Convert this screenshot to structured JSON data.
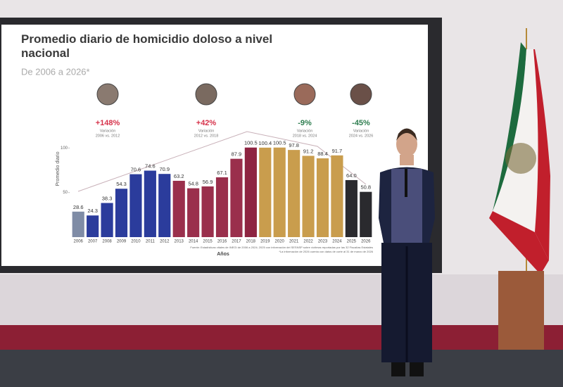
{
  "chart_data": {
    "type": "bar",
    "title": "Promedio diario de homicidio doloso a nivel nacional",
    "subtitle": "De 2006 a 2026*",
    "y_label": "Promedio diario",
    "x_label": "Años",
    "categories": [
      "2006",
      "2007",
      "2008",
      "2009",
      "2010",
      "2011",
      "2012",
      "2013",
      "2014",
      "2015",
      "2016",
      "2017",
      "2018",
      "2019",
      "2020",
      "2021",
      "2022",
      "2023",
      "2024",
      "2025",
      "2026"
    ],
    "values": [
      28.6,
      24.3,
      38.3,
      54.3,
      70.6,
      74.6,
      70.9,
      63.2,
      54.8,
      56.9,
      67.1,
      87.9,
      100.5,
      100.4,
      100.5,
      97.8,
      91.2,
      88.4,
      91.7,
      64.0,
      50.8
    ],
    "value_labels": [
      "28.6",
      "24.3",
      "38.3",
      "54.3",
      "70.6",
      "74.6",
      "70.9",
      "63.2",
      "54.8",
      "56.9",
      "67.1",
      "87.9",
      "100.5",
      "100.4",
      "100.5",
      "97.8",
      "91.2",
      "88.4",
      "91.7",
      "64.0",
      "50.8"
    ],
    "colors": [
      "#7f8ca6",
      "#2b3c9c",
      "#2b3c9c",
      "#2b3c9c",
      "#2b3c9c",
      "#2b3c9c",
      "#2b3c9c",
      "#9a2f4c",
      "#9a2f4c",
      "#9a2f4c",
      "#9a2f4c",
      "#9a2f4c",
      "#8e2441",
      "#c99d4d",
      "#c99d4d",
      "#c99d4d",
      "#c99d4d",
      "#c99d4d",
      "#c99d4d",
      "#2a2a2e",
      "#2a2a2e"
    ],
    "ylim": [
      0,
      105
    ],
    "yticks": [
      50,
      100
    ],
    "annotations": [
      {
        "change": "+148%",
        "label": "Variación",
        "period": "2006 vs. 2012",
        "color": "#d6324a"
      },
      {
        "change": "+42%",
        "label": "Variación",
        "period": "2012 vs. 2018",
        "color": "#d6324a"
      },
      {
        "change": "-9%",
        "label": "Variación",
        "period": "2018 vs. 2024",
        "color": "#2e7d4f"
      },
      {
        "change": "-45%",
        "label": "Variación",
        "period": "2024 vs. 2026",
        "color": "#2e7d4f"
      }
    ],
    "source": [
      "Fuente: Estadísticas vitales de INEGI de 2006 a 2024; 2025 con información del SESNSP sobre víctimas reportadas por las 32 Fiscalías Estatales",
      "*La información de 2026 cuenta con datos de corte al 31 de marzo de 2026"
    ]
  }
}
